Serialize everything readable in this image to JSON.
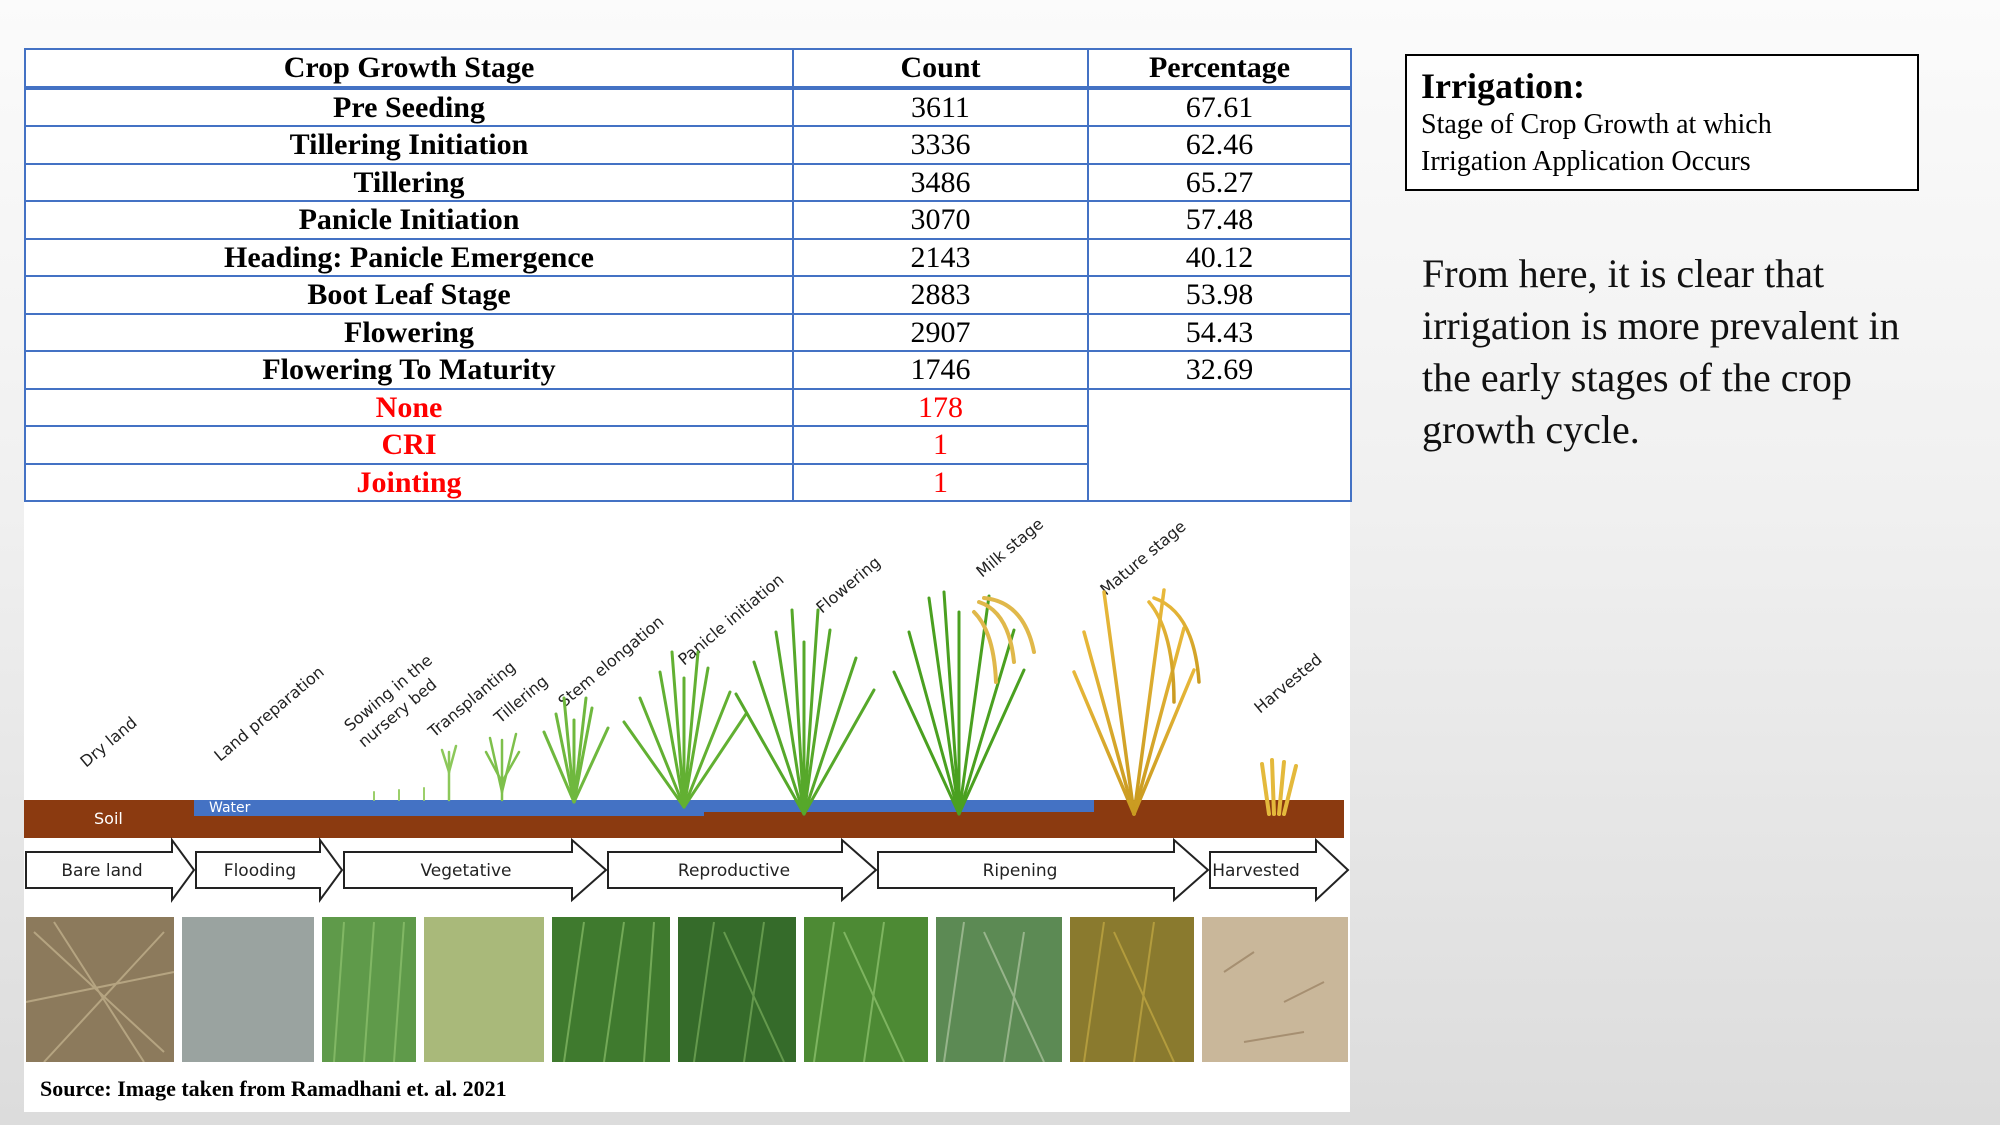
{
  "table": {
    "headers": [
      "Crop Growth Stage",
      "Count",
      "Percentage"
    ],
    "rows": [
      {
        "stage": "Pre Seeding",
        "count": "3611",
        "percentage": "67.61"
      },
      {
        "stage": "Tillering Initiation",
        "count": "3336",
        "percentage": "62.46"
      },
      {
        "stage": "Tillering",
        "count": "3486",
        "percentage": "65.27"
      },
      {
        "stage": "Panicle Initiation",
        "count": "3070",
        "percentage": "57.48"
      },
      {
        "stage": "Heading: Panicle Emergence",
        "count": "2143",
        "percentage": "40.12"
      },
      {
        "stage": "Boot Leaf Stage",
        "count": "2883",
        "percentage": "53.98"
      },
      {
        "stage": "Flowering",
        "count": "2907",
        "percentage": "54.43"
      },
      {
        "stage": "Flowering To Maturity",
        "count": "1746",
        "percentage": "32.69"
      }
    ],
    "extra_rows": [
      {
        "stage": "None",
        "count": "178"
      },
      {
        "stage": "CRI",
        "count": "1"
      },
      {
        "stage": "Jointing",
        "count": "1"
      }
    ],
    "border_color": "#4472c4",
    "extra_color": "#ff0000"
  },
  "figure": {
    "stage_labels": [
      "Dry land",
      "Land preparation",
      "Sowing in the",
      "nursery bed",
      "Transplanting",
      "Tillering",
      "Stem elongation",
      "Panicle initiation",
      "Flowering",
      "Milk stage",
      "Mature stage",
      "Harvested"
    ],
    "soil_label": "Soil",
    "water_label": "Water",
    "phases": [
      "Bare land",
      "Flooding",
      "Vegetative",
      "Reproductive",
      "Ripening",
      "Harvested"
    ],
    "photo_descriptions_icons": [
      "dry-straw-photo",
      "flooded-field-photo",
      "nursery-seedlings-photo",
      "transplanted-seedling-photo",
      "tillering-photo",
      "stem-elongation-photo",
      "panicle-initiation-photo",
      "flowering-photo",
      "mature-photo",
      "harvested-stubble-photo"
    ],
    "source": "Source: Image taken from Ramadhani et. al. 2021"
  },
  "irrigation_box": {
    "title": "Irrigation:",
    "subtitle_line1": "Stage of Crop Growth at which",
    "subtitle_line2": "Irrigation Application Occurs"
  },
  "conclusion": "From here, it is clear that irrigation is more prevalent in the early stages of the crop growth cycle."
}
